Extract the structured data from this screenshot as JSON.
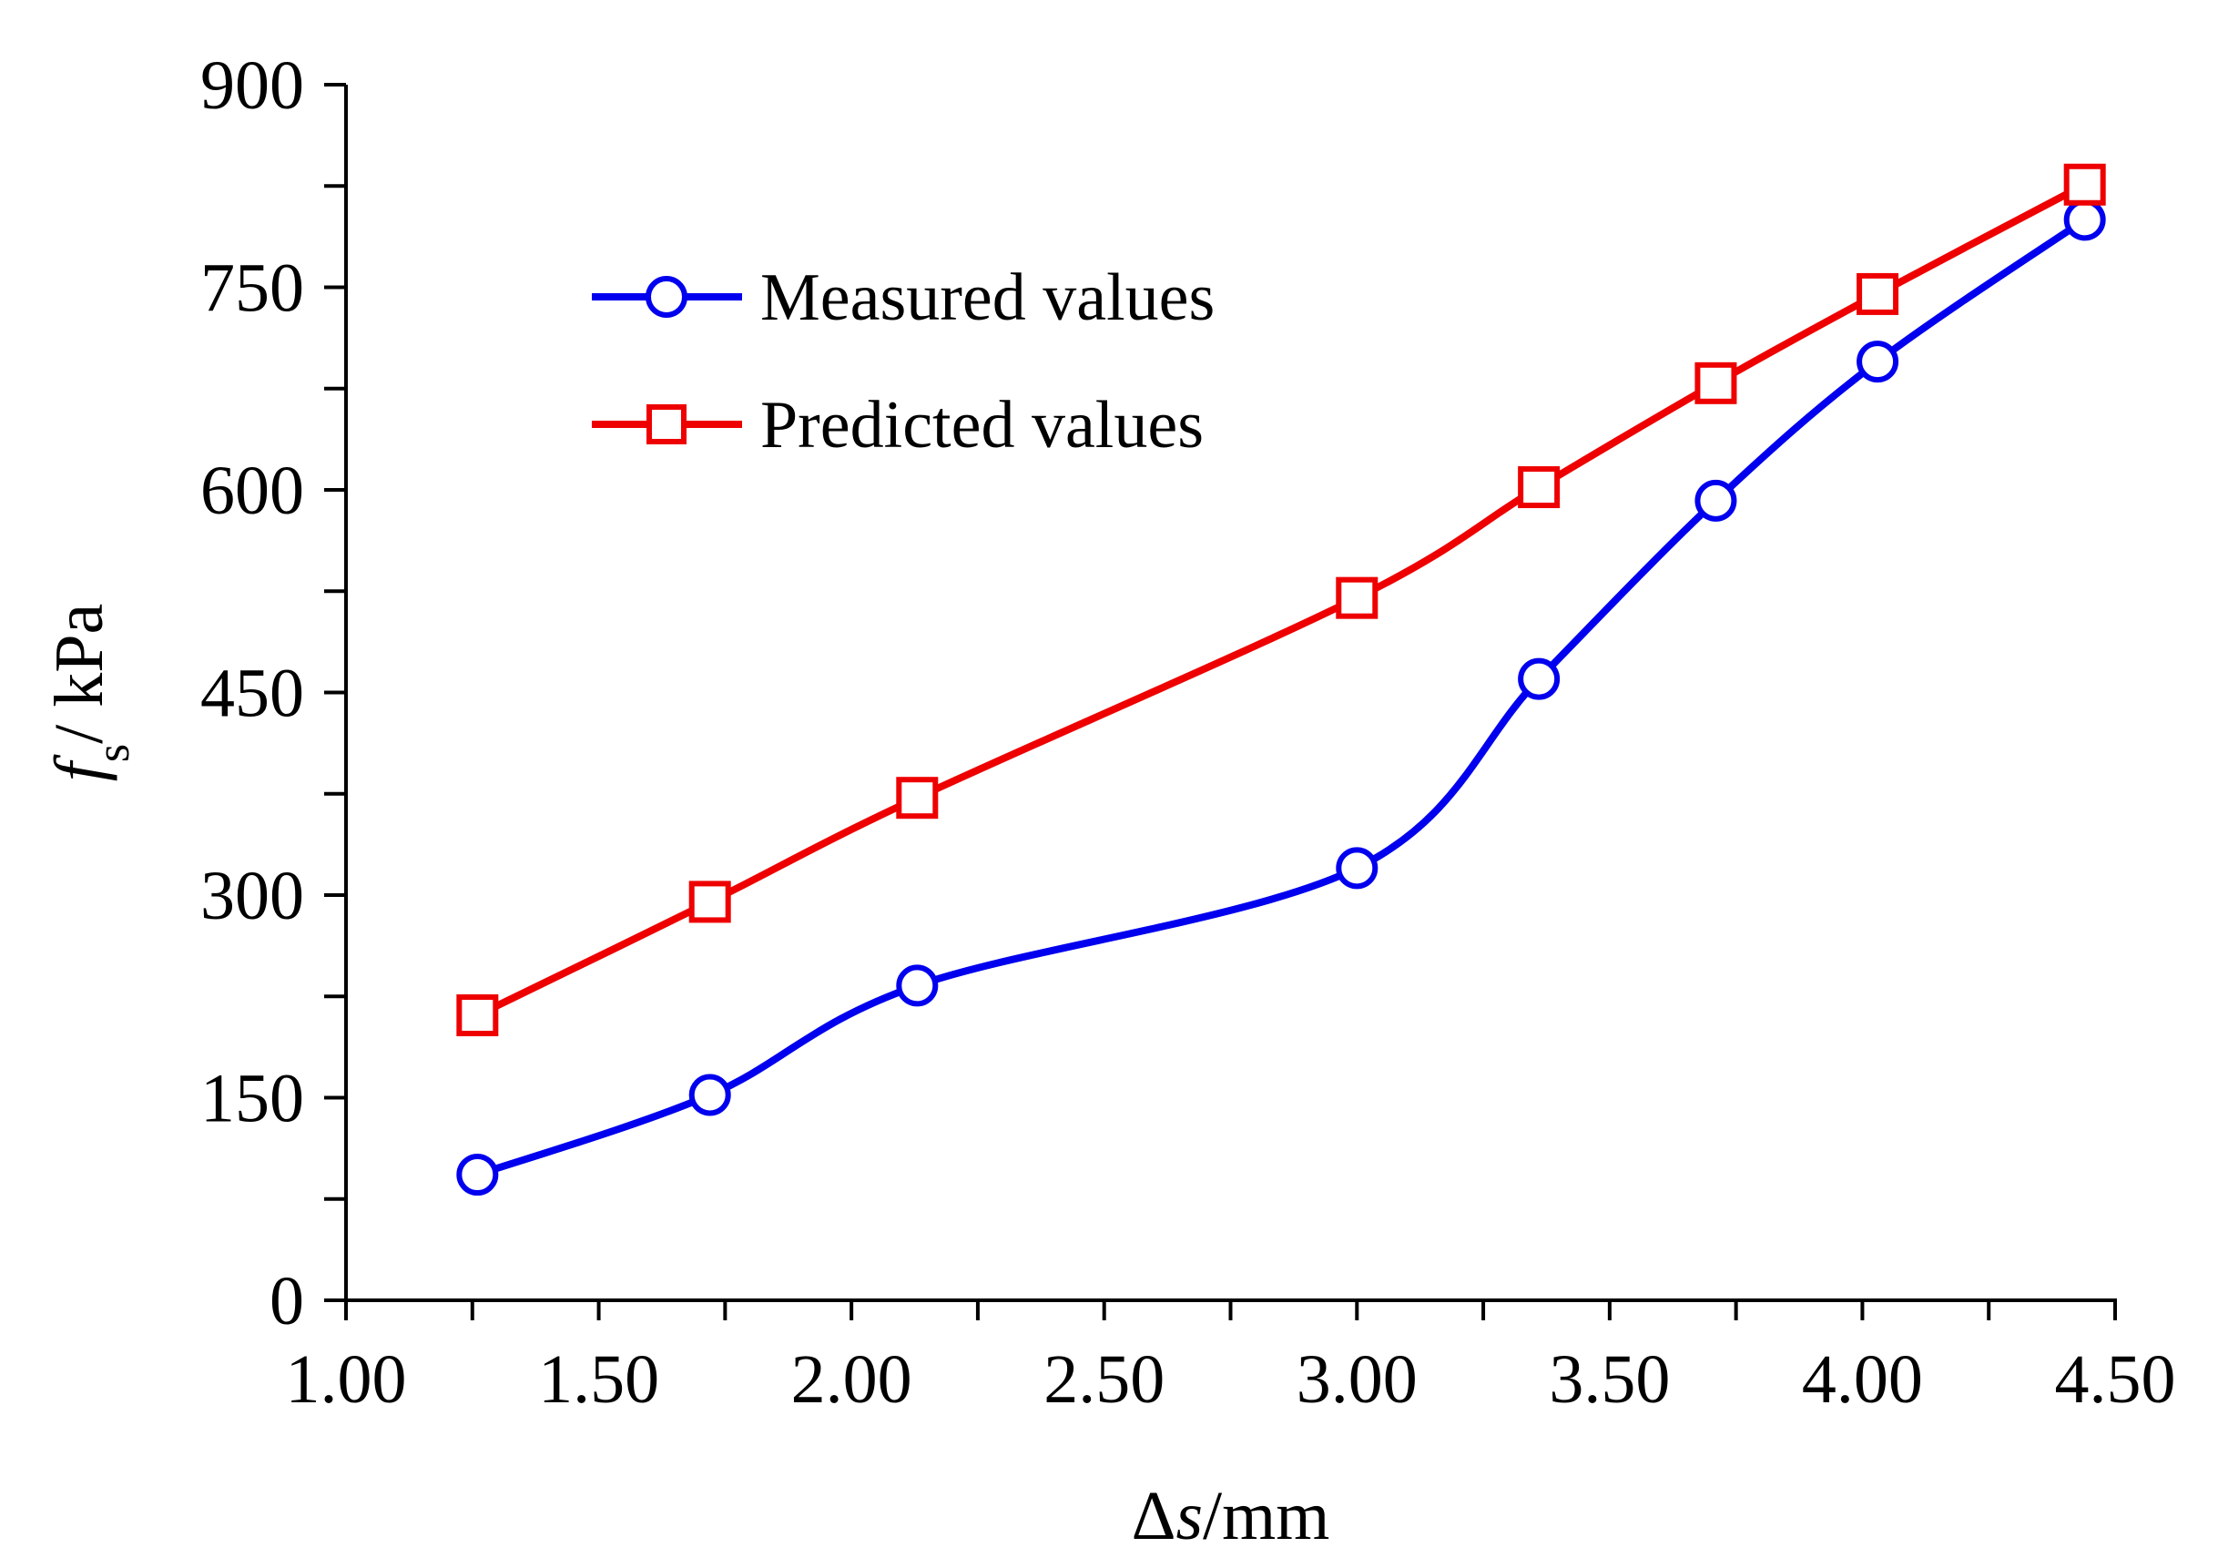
{
  "chart_data": {
    "type": "line",
    "xlabel": {
      "prefix": "Δ",
      "var": "s",
      "unit": "/mm"
    },
    "ylabel": {
      "var": "f",
      "sub": "s",
      "unit": "/ kPa"
    },
    "xlim": [
      1.0,
      4.5
    ],
    "ylim": [
      0,
      900
    ],
    "x_ticks": [
      "1.00",
      "1.50",
      "2.00",
      "2.50",
      "3.00",
      "3.50",
      "4.00",
      "4.50"
    ],
    "y_ticks": [
      "0",
      "150",
      "300",
      "450",
      "600",
      "750",
      "900"
    ],
    "grid": false,
    "legend_position": "top-left",
    "series": [
      {
        "name": "Measured values",
        "color": "#0000ee",
        "marker": "circle",
        "x": [
          1.26,
          1.72,
          2.13,
          3.0,
          3.36,
          3.71,
          4.03,
          4.44
        ],
        "y": [
          93,
          152,
          233,
          320,
          460,
          592,
          695,
          800
        ]
      },
      {
        "name": "Predicted values",
        "color": "#ee0000",
        "marker": "square",
        "x": [
          1.26,
          1.72,
          2.13,
          3.0,
          3.36,
          3.71,
          4.03,
          4.44
        ],
        "y": [
          211,
          295,
          372,
          520,
          602,
          679,
          745,
          826
        ]
      }
    ]
  }
}
